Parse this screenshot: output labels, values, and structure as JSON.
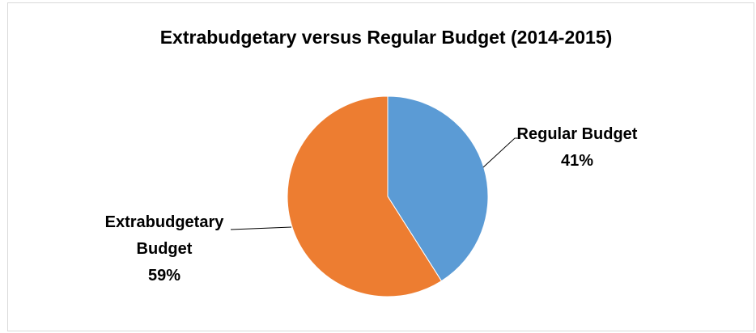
{
  "chart_data": {
    "type": "pie",
    "title": "Extrabudgetary versus Regular  Budget (2014-2015)",
    "slices": [
      {
        "name": "Regular Budget",
        "value": 41,
        "label_lines": [
          "Regular Budget",
          "41%"
        ],
        "color": "#5b9bd5"
      },
      {
        "name": "Extrabudgetary Budget",
        "value": 59,
        "label_lines": [
          "Extrabudgetary",
          "Budget",
          "59%"
        ],
        "color": "#ed7d31"
      }
    ],
    "start_angle_deg": 0,
    "direction": "clockwise",
    "legend": "none",
    "data_labels": "outside with leader lines"
  }
}
